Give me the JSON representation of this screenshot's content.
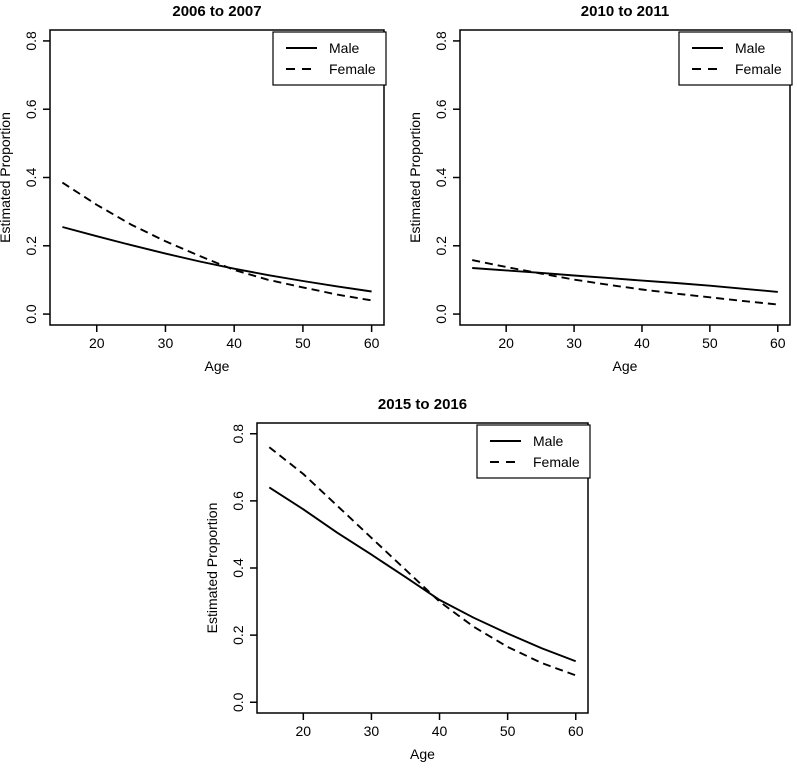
{
  "figure": {
    "background": "#ffffff",
    "line_color": "#000000",
    "text_color": "#000000"
  },
  "chart_data": [
    {
      "type": "line",
      "title": "2006 to 2007",
      "xlabel": "Age",
      "ylabel": "Estimated Proportion",
      "xlim": [
        15,
        60
      ],
      "ylim": [
        0,
        0.8
      ],
      "xticks": [
        20,
        30,
        40,
        50,
        60
      ],
      "xtick_labels": [
        "20",
        "30",
        "40",
        "50",
        "60"
      ],
      "yticks": [
        0.0,
        0.2,
        0.4,
        0.6,
        0.8
      ],
      "ytick_labels": [
        "0.0",
        "0.2",
        "0.4",
        "0.6",
        "0.8"
      ],
      "grid": false,
      "legend": {
        "position": "topright"
      },
      "x": [
        15,
        20,
        25,
        30,
        35,
        40,
        45,
        50,
        55,
        60
      ],
      "series": [
        {
          "name": "Male",
          "linestyle": "solid",
          "values": [
            0.255,
            0.228,
            0.202,
            0.177,
            0.154,
            0.133,
            0.114,
            0.097,
            0.081,
            0.066
          ]
        },
        {
          "name": "Female",
          "linestyle": "dashed",
          "values": [
            0.385,
            0.32,
            0.262,
            0.213,
            0.17,
            0.129,
            0.1,
            0.078,
            0.057,
            0.04
          ]
        }
      ],
      "line_color": "#000000"
    },
    {
      "type": "line",
      "title": "2010 to 2011",
      "xlabel": "Age",
      "ylabel": "Estimated Proportion",
      "xlim": [
        15,
        60
      ],
      "ylim": [
        0,
        0.8
      ],
      "xticks": [
        20,
        30,
        40,
        50,
        60
      ],
      "xtick_labels": [
        "20",
        "30",
        "40",
        "50",
        "60"
      ],
      "yticks": [
        0.0,
        0.2,
        0.4,
        0.6,
        0.8
      ],
      "ytick_labels": [
        "0.0",
        "0.2",
        "0.4",
        "0.6",
        "0.8"
      ],
      "grid": false,
      "legend": {
        "position": "topright"
      },
      "x": [
        15,
        20,
        25,
        30,
        35,
        40,
        45,
        50,
        55,
        60
      ],
      "series": [
        {
          "name": "Male",
          "linestyle": "solid",
          "values": [
            0.135,
            0.128,
            0.121,
            0.113,
            0.106,
            0.098,
            0.091,
            0.083,
            0.074,
            0.065
          ]
        },
        {
          "name": "Female",
          "linestyle": "dashed",
          "values": [
            0.158,
            0.138,
            0.119,
            0.101,
            0.086,
            0.072,
            0.06,
            0.049,
            0.038,
            0.028
          ]
        }
      ],
      "line_color": "#000000"
    },
    {
      "type": "line",
      "title": "2015 to 2016",
      "xlabel": "Age",
      "ylabel": "Estimated Proportion",
      "xlim": [
        15,
        60
      ],
      "ylim": [
        0,
        0.8
      ],
      "xticks": [
        20,
        30,
        40,
        50,
        60
      ],
      "xtick_labels": [
        "20",
        "30",
        "40",
        "50",
        "60"
      ],
      "yticks": [
        0.0,
        0.2,
        0.4,
        0.6,
        0.8
      ],
      "ytick_labels": [
        "0.0",
        "0.2",
        "0.4",
        "0.6",
        "0.8"
      ],
      "grid": false,
      "legend": {
        "position": "topright"
      },
      "x": [
        15,
        20,
        25,
        30,
        35,
        40,
        45,
        50,
        55,
        60
      ],
      "series": [
        {
          "name": "Male",
          "linestyle": "solid",
          "values": [
            0.64,
            0.575,
            0.505,
            0.44,
            0.373,
            0.305,
            0.252,
            0.205,
            0.161,
            0.122
          ]
        },
        {
          "name": "Female",
          "linestyle": "dashed",
          "values": [
            0.76,
            0.68,
            0.585,
            0.49,
            0.395,
            0.3,
            0.225,
            0.165,
            0.117,
            0.08
          ]
        }
      ],
      "line_color": "#000000"
    }
  ]
}
